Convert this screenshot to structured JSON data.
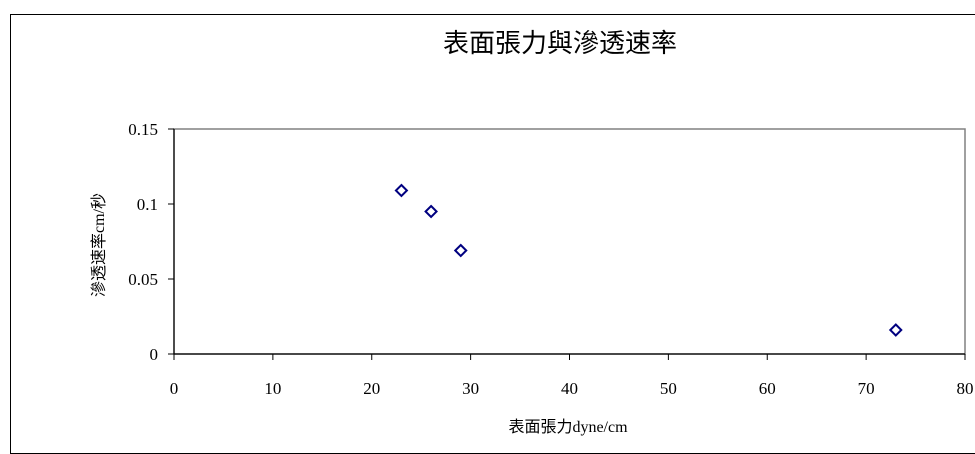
{
  "chart_data": {
    "type": "scatter",
    "title": "表面張力與滲透速率",
    "xlabel": "表面張力dyne/cm",
    "ylabel": "滲透速率cm/秒",
    "xlim": [
      0,
      80
    ],
    "ylim": [
      0,
      0.15
    ],
    "xticks": [
      "0",
      "10",
      "20",
      "30",
      "40",
      "50",
      "60",
      "70",
      "80"
    ],
    "yticks": [
      "0",
      "0.05",
      "0.1",
      "0.15"
    ],
    "grid": false,
    "legend": "none",
    "marker": "diamond",
    "marker_color": "#000080",
    "series": [
      {
        "points": [
          {
            "x": 23,
            "y": 0.109
          },
          {
            "x": 26,
            "y": 0.095
          },
          {
            "x": 29,
            "y": 0.069
          },
          {
            "x": 73,
            "y": 0.016
          }
        ]
      }
    ]
  }
}
